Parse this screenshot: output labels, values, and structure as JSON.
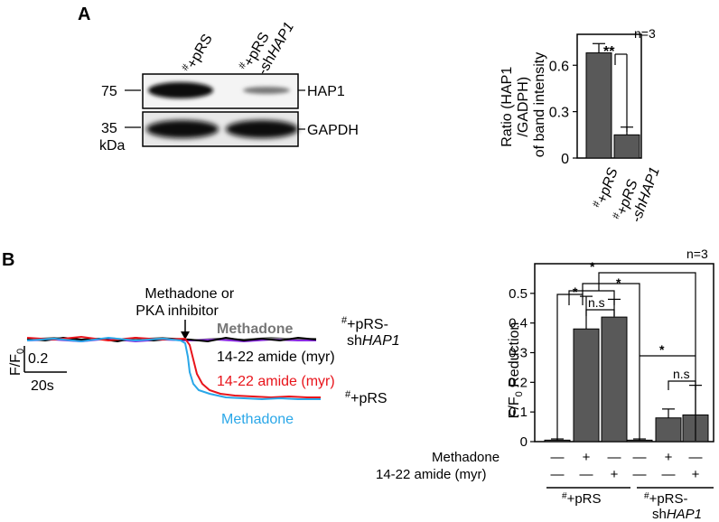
{
  "panel_a": {
    "letter": "A",
    "lanes": [
      {
        "sup": "#",
        "text": "+pRS",
        "italic": ""
      },
      {
        "sup": "#",
        "text": "+pRS",
        "line2": "-sh",
        "italic": "HAP1"
      }
    ],
    "markers": {
      "m75": "75",
      "m35": "35",
      "unit": "kDa"
    },
    "bands": {
      "hap1": "HAP1",
      "gapdh": "GAPDH"
    },
    "nlabel": "n=3",
    "sig": "**",
    "ylabel": [
      "Ratio (HAP1",
      "/GADPH)",
      "of band intensity"
    ]
  },
  "panel_b": {
    "letter": "B",
    "arrow_label": [
      "Methadone or",
      "PKA inhibitor"
    ],
    "scale": {
      "y": "0.2",
      "x": "20s",
      "f": "F/F",
      "f_sub": "0"
    },
    "trace_labels": {
      "methadone_top": "Methadone",
      "amide_top": "14-22 amide (myr)",
      "amide_red": "14-22 amide (myr)",
      "methadone_blue": "Methadone"
    },
    "group_labels": {
      "shhap1_sup": "#",
      "shhap1_a": "+pRS-",
      "shhap1_b": "sh",
      "shhap1_i": "HAP1",
      "prs_sup": "#",
      "prs": "+pRS"
    },
    "trace_colors": {
      "gray": "#777777",
      "black": "#000000",
      "purple": "#8a2be2",
      "red": "#e8141b",
      "blue": "#2aa7e8"
    },
    "nlabel": "n=3",
    "ylabel": "F/F",
    "ylabel_sub": "0",
    "ylabel_rest": " Reduction",
    "sig": [
      "*",
      "*",
      "*",
      "*",
      "n.s",
      "n.s"
    ],
    "rows": {
      "methadone": {
        "label": "Methadone",
        "signs": [
          "—",
          "+",
          "—",
          "—",
          "+",
          "—"
        ]
      },
      "amide": {
        "label": "14-22 amide (myr)",
        "signs": [
          "—",
          "—",
          "+",
          "—",
          "—",
          "+"
        ]
      }
    },
    "groups": [
      {
        "sup": "#",
        "text": "+pRS"
      },
      {
        "sup": "#",
        "text": "+pRS-",
        "line2": "sh",
        "italic": "HAP1"
      }
    ]
  },
  "chart_data": [
    {
      "type": "bar",
      "categories": [
        "#+pRS",
        "#+pRS-shHAP1"
      ],
      "values": [
        0.68,
        0.15
      ],
      "errors": [
        0.06,
        0.05
      ],
      "ylim": [
        0,
        0.8
      ],
      "yticks": [
        0,
        0.3,
        0.6
      ],
      "ylabel": "Ratio (HAP1/GADPH) of band intensity",
      "bar_color": "#595959"
    },
    {
      "type": "bar",
      "categories": [
        "#+pRS control",
        "#+pRS Methadone",
        "#+pRS 14-22 amide (myr)",
        "#+pRS-shHAP1 control",
        "#+pRS-shHAP1 Methadone",
        "#+pRS-shHAP1 14-22 amide (myr)"
      ],
      "values": [
        0.005,
        0.38,
        0.42,
        0.005,
        0.08,
        0.09
      ],
      "errors": [
        0.004,
        0.11,
        0.06,
        0.004,
        0.03,
        0.1
      ],
      "ylim": [
        0,
        0.6
      ],
      "yticks": [
        0,
        0.1,
        0.2,
        0.3,
        0.4,
        0.5
      ],
      "ylabel": "F/F0 Reduction",
      "bar_color": "#595959"
    }
  ]
}
